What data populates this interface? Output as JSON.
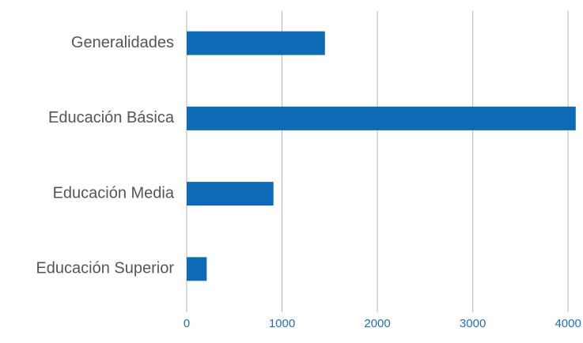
{
  "chart_data": {
    "type": "bar",
    "orientation": "horizontal",
    "categories": [
      "Generalidades",
      "Educación Básica",
      "Educación Media",
      "Educación Superior"
    ],
    "values": [
      1450,
      4080,
      910,
      210
    ],
    "color": "#0e6ab4",
    "xlim": [
      0,
      4090
    ],
    "xticks": [
      0,
      1000,
      2000,
      3000,
      4000
    ],
    "grid": true
  }
}
